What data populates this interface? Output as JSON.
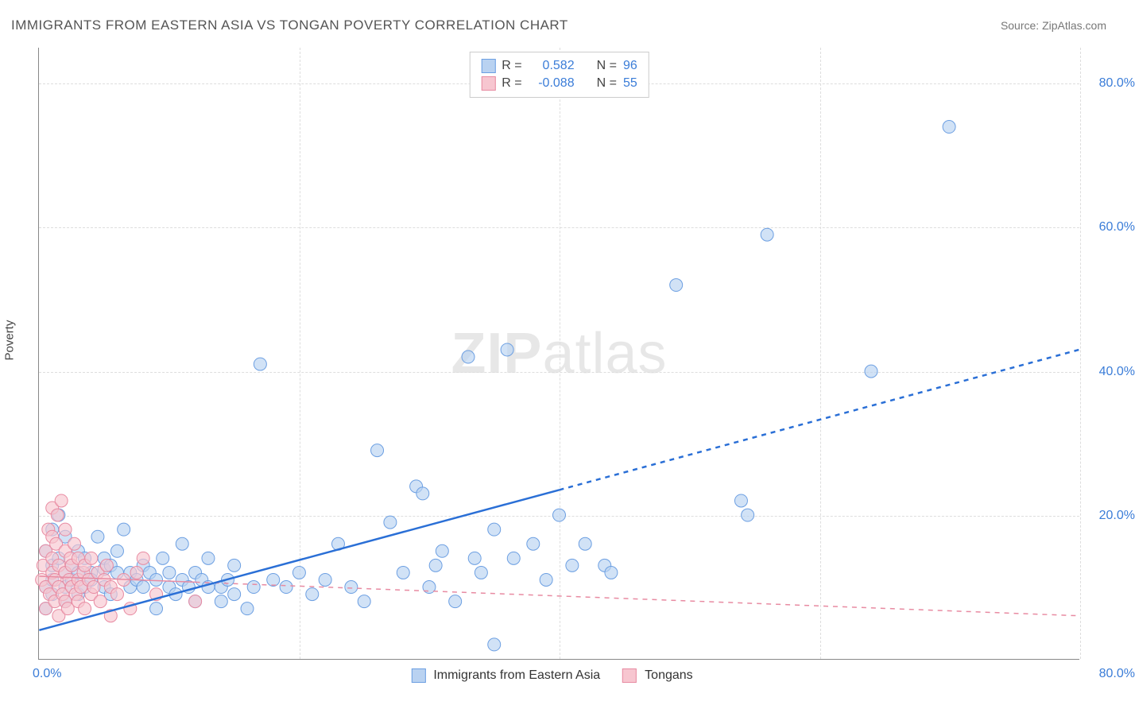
{
  "title": "IMMIGRANTS FROM EASTERN ASIA VS TONGAN POVERTY CORRELATION CHART",
  "source": "Source: ZipAtlas.com",
  "ylabel": "Poverty",
  "watermark_bold": "ZIP",
  "watermark_light": "atlas",
  "colors": {
    "blue_fill": "#b9d2f1",
    "blue_stroke": "#6c9fe2",
    "pink_fill": "#f7c6d0",
    "pink_stroke": "#e88ba2",
    "blue_line": "#2a6fd6",
    "pink_line": "#e88ba2",
    "tick_text": "#3b7dd8",
    "grid": "#dddddd"
  },
  "axes": {
    "x_min": 0,
    "x_max": 80,
    "y_min": 0,
    "y_max": 85,
    "y_ticks": [
      20,
      40,
      60,
      80
    ],
    "y_tick_labels": [
      "20.0%",
      "40.0%",
      "60.0%",
      "80.0%"
    ],
    "x_min_label": "0.0%",
    "x_max_label": "80.0%"
  },
  "legend_top": [
    {
      "swatch_fill": "#b9d2f1",
      "swatch_stroke": "#6c9fe2",
      "r_label": "R =",
      "r_value": "0.582",
      "n_label": "N =",
      "n_value": "96"
    },
    {
      "swatch_fill": "#f7c6d0",
      "swatch_stroke": "#e88ba2",
      "r_label": "R =",
      "r_value": "-0.088",
      "n_label": "N =",
      "n_value": "55"
    }
  ],
  "legend_bottom": [
    {
      "swatch_fill": "#b9d2f1",
      "swatch_stroke": "#6c9fe2",
      "label": "Immigrants from Eastern Asia"
    },
    {
      "swatch_fill": "#f7c6d0",
      "swatch_stroke": "#e88ba2",
      "label": "Tongans"
    }
  ],
  "trend_lines": {
    "blue": {
      "x1": 0,
      "y1": 4,
      "x2": 80,
      "y2": 43,
      "solid_until_x": 40,
      "color": "#2a6fd6",
      "width": 2.5
    },
    "pink": {
      "x1": 0,
      "y1": 11.5,
      "x2": 80,
      "y2": 6,
      "solid_until_x": 12,
      "color": "#e88ba2",
      "width": 1.5
    }
  },
  "marker_radius": 8,
  "series_blue": [
    [
      0.5,
      10
    ],
    [
      0.5,
      15
    ],
    [
      0.5,
      7
    ],
    [
      1,
      13
    ],
    [
      1,
      9
    ],
    [
      1,
      18
    ],
    [
      1,
      11
    ],
    [
      1.5,
      14
    ],
    [
      1.5,
      20
    ],
    [
      2,
      10
    ],
    [
      2,
      12
    ],
    [
      2,
      8
    ],
    [
      2,
      17
    ],
    [
      2.5,
      11
    ],
    [
      2.5,
      13
    ],
    [
      3,
      9
    ],
    [
      3,
      12
    ],
    [
      3,
      15
    ],
    [
      3.5,
      10
    ],
    [
      3.5,
      14
    ],
    [
      4,
      12
    ],
    [
      4,
      11
    ],
    [
      4.5,
      17
    ],
    [
      5,
      10
    ],
    [
      5,
      12.5
    ],
    [
      5,
      14
    ],
    [
      5.5,
      9
    ],
    [
      5.5,
      13
    ],
    [
      6,
      12
    ],
    [
      6,
      15
    ],
    [
      6.5,
      18
    ],
    [
      7,
      10
    ],
    [
      7,
      12
    ],
    [
      7.5,
      11
    ],
    [
      8,
      13
    ],
    [
      8,
      10
    ],
    [
      8.5,
      12
    ],
    [
      9,
      7
    ],
    [
      9,
      11
    ],
    [
      9.5,
      14
    ],
    [
      10,
      10
    ],
    [
      10,
      12
    ],
    [
      10.5,
      9
    ],
    [
      11,
      11
    ],
    [
      11,
      16
    ],
    [
      11.5,
      10
    ],
    [
      12,
      8
    ],
    [
      12,
      12
    ],
    [
      12.5,
      11
    ],
    [
      13,
      10
    ],
    [
      13,
      14
    ],
    [
      14,
      10
    ],
    [
      14,
      8
    ],
    [
      14.5,
      11
    ],
    [
      15,
      9
    ],
    [
      15,
      13
    ],
    [
      16,
      7
    ],
    [
      16.5,
      10
    ],
    [
      17,
      41
    ],
    [
      18,
      11
    ],
    [
      19,
      10
    ],
    [
      20,
      12
    ],
    [
      21,
      9
    ],
    [
      22,
      11
    ],
    [
      23,
      16
    ],
    [
      24,
      10
    ],
    [
      25,
      8
    ],
    [
      26,
      29
    ],
    [
      27,
      19
    ],
    [
      28,
      12
    ],
    [
      29,
      24
    ],
    [
      29.5,
      23
    ],
    [
      30,
      10
    ],
    [
      30.5,
      13
    ],
    [
      31,
      15
    ],
    [
      32,
      8
    ],
    [
      33,
      42
    ],
    [
      33.5,
      14
    ],
    [
      34,
      12
    ],
    [
      35,
      18
    ],
    [
      36,
      43
    ],
    [
      36.5,
      14
    ],
    [
      38,
      16
    ],
    [
      39,
      11
    ],
    [
      40,
      20
    ],
    [
      41,
      13
    ],
    [
      42,
      16
    ],
    [
      43.5,
      13
    ],
    [
      44,
      12
    ],
    [
      49,
      52
    ],
    [
      54,
      22
    ],
    [
      54.5,
      20
    ],
    [
      56,
      59
    ],
    [
      64,
      40
    ],
    [
      70,
      74
    ],
    [
      35,
      2
    ]
  ],
  "series_pink": [
    [
      0.2,
      11
    ],
    [
      0.3,
      13
    ],
    [
      0.5,
      10
    ],
    [
      0.5,
      15
    ],
    [
      0.5,
      7
    ],
    [
      0.7,
      18
    ],
    [
      0.8,
      9
    ],
    [
      1,
      12
    ],
    [
      1,
      14
    ],
    [
      1,
      17
    ],
    [
      1,
      21
    ],
    [
      1.2,
      8
    ],
    [
      1.2,
      11
    ],
    [
      1.3,
      16
    ],
    [
      1.4,
      20
    ],
    [
      1.5,
      10
    ],
    [
      1.5,
      6
    ],
    [
      1.5,
      13
    ],
    [
      1.7,
      22
    ],
    [
      1.8,
      9
    ],
    [
      2,
      12
    ],
    [
      2,
      8
    ],
    [
      2,
      15
    ],
    [
      2,
      18
    ],
    [
      2.2,
      7
    ],
    [
      2.3,
      11
    ],
    [
      2.4,
      14
    ],
    [
      2.5,
      10
    ],
    [
      2.5,
      13
    ],
    [
      2.7,
      16
    ],
    [
      2.8,
      9
    ],
    [
      3,
      11
    ],
    [
      3,
      8
    ],
    [
      3,
      14
    ],
    [
      3.2,
      10
    ],
    [
      3.4,
      12
    ],
    [
      3.5,
      13
    ],
    [
      3.5,
      7
    ],
    [
      3.8,
      11
    ],
    [
      4,
      9
    ],
    [
      4,
      14
    ],
    [
      4.2,
      10
    ],
    [
      4.5,
      12
    ],
    [
      4.7,
      8
    ],
    [
      5,
      11
    ],
    [
      5.2,
      13
    ],
    [
      5.5,
      10
    ],
    [
      5.5,
      6
    ],
    [
      6,
      9
    ],
    [
      6.5,
      11
    ],
    [
      7,
      7
    ],
    [
      7.5,
      12
    ],
    [
      8,
      14
    ],
    [
      9,
      9
    ],
    [
      12,
      8
    ]
  ]
}
